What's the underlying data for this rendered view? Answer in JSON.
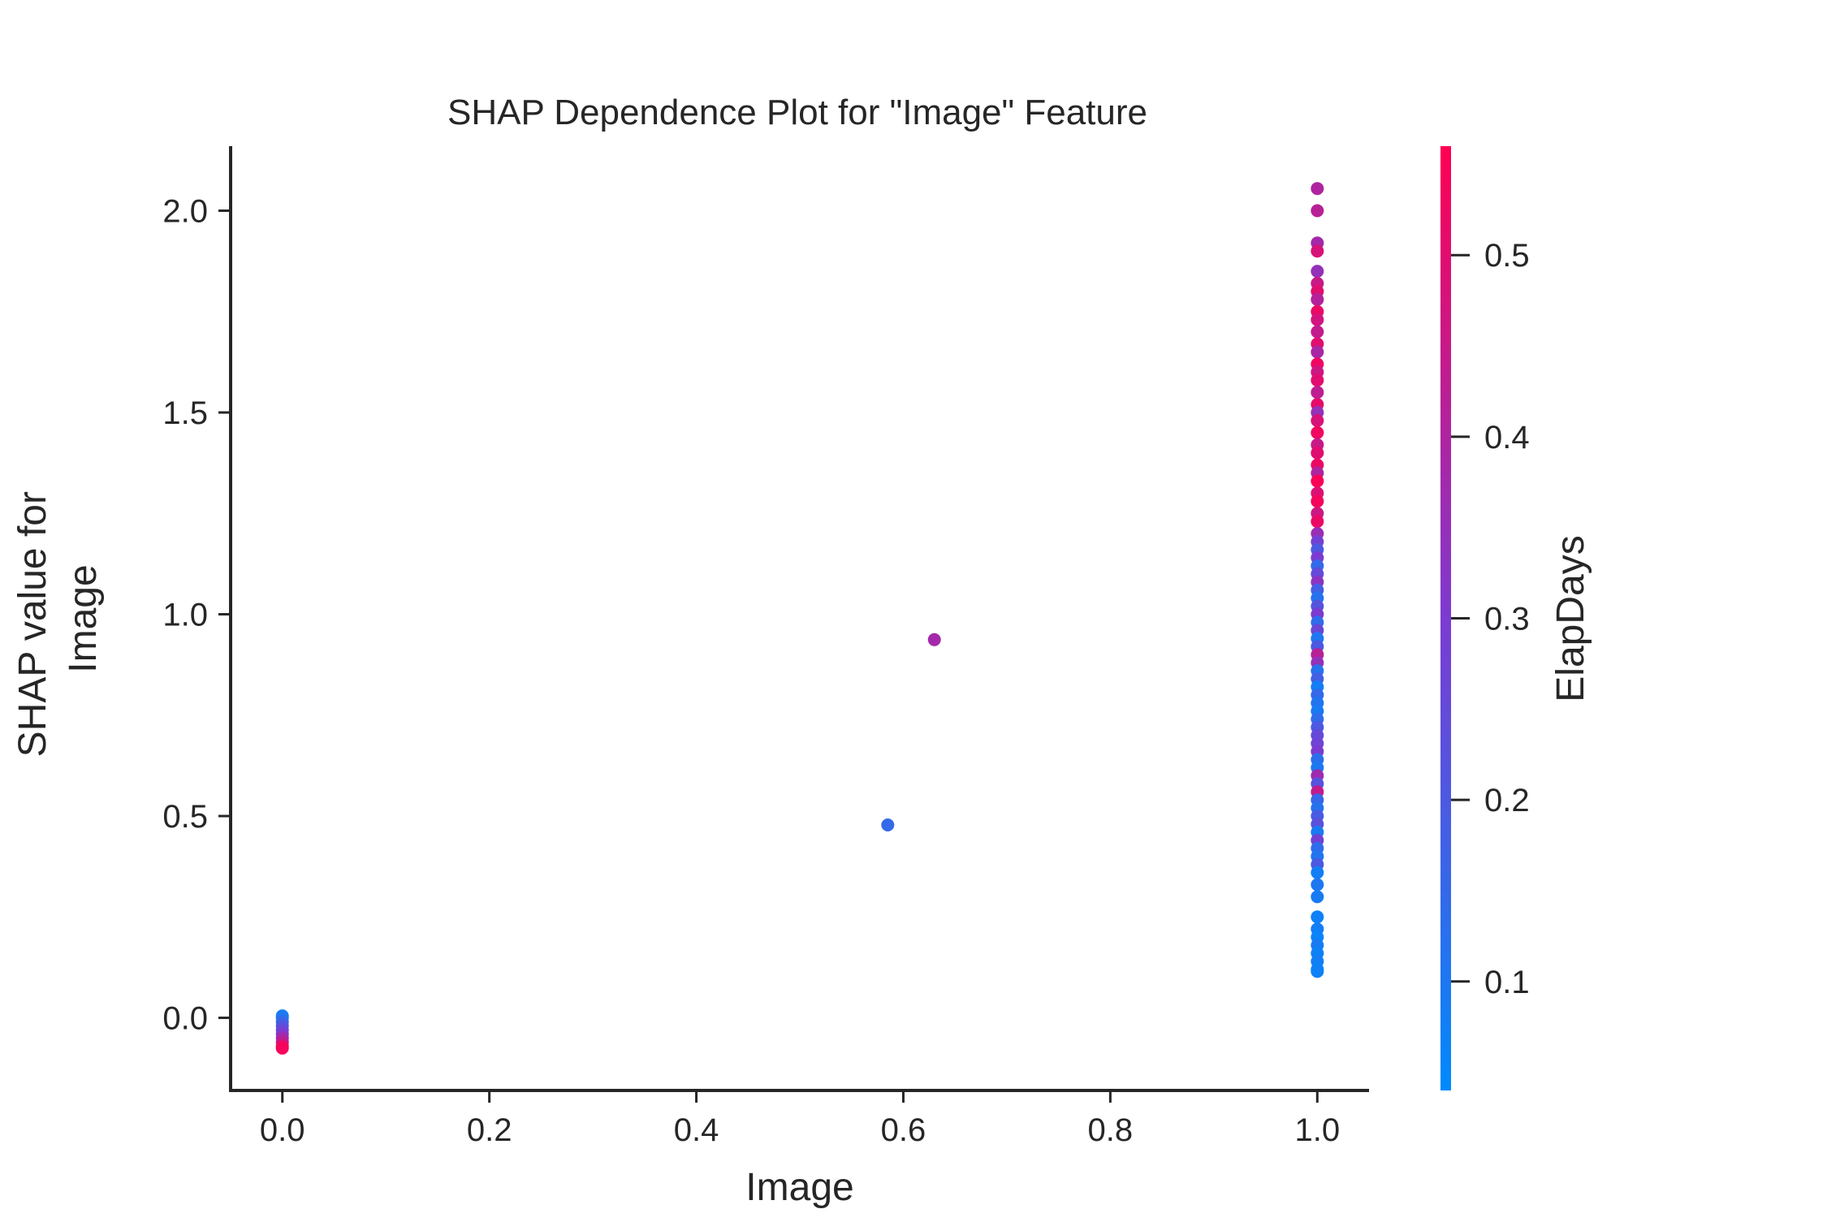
{
  "chart_data": {
    "type": "scatter",
    "title": "SHAP Dependence Plot for \"Image\" Feature",
    "xlabel": "Image",
    "ylabel_lines": [
      "SHAP value for",
      "Image"
    ],
    "xlim": [
      -0.05,
      1.05
    ],
    "ylim": [
      -0.18,
      2.16
    ],
    "x_ticks": [
      0.0,
      0.2,
      0.4,
      0.6,
      0.8,
      1.0
    ],
    "x_tick_labels": [
      "0.0",
      "0.2",
      "0.4",
      "0.6",
      "0.8",
      "1.0"
    ],
    "y_ticks": [
      0.0,
      0.5,
      1.0,
      1.5,
      2.0
    ],
    "y_tick_labels": [
      "0.0",
      "0.5",
      "1.0",
      "1.5",
      "2.0"
    ],
    "colorbar": {
      "label": "ElapDays",
      "range": [
        0.04,
        0.56
      ],
      "ticks": [
        0.1,
        0.2,
        0.3,
        0.4,
        0.5
      ],
      "tick_labels": [
        "0.1",
        "0.2",
        "0.3",
        "0.4",
        "0.5"
      ],
      "color_low": "#008afb",
      "color_mid": "#7c3bd1",
      "color_high": "#ff0052"
    },
    "grid": false,
    "series": [
      {
        "points": [
          [
            0.0,
            0.005,
            0.08
          ],
          [
            0.0,
            0.0,
            0.1
          ],
          [
            0.0,
            -0.01,
            0.15
          ],
          [
            0.0,
            -0.02,
            0.2
          ],
          [
            0.0,
            -0.03,
            0.25
          ],
          [
            0.0,
            -0.04,
            0.3
          ],
          [
            0.0,
            -0.05,
            0.37
          ],
          [
            0.0,
            -0.06,
            0.42
          ],
          [
            0.0,
            -0.07,
            0.5
          ],
          [
            0.0,
            -0.075,
            0.54
          ],
          [
            0.585,
            0.478,
            0.15
          ],
          [
            0.63,
            0.937,
            0.38
          ],
          [
            1.0,
            2.055,
            0.4
          ],
          [
            1.0,
            2.0,
            0.42
          ],
          [
            1.0,
            1.92,
            0.38
          ],
          [
            1.0,
            1.9,
            0.48
          ],
          [
            1.0,
            1.85,
            0.35
          ],
          [
            1.0,
            1.82,
            0.45
          ],
          [
            1.0,
            1.8,
            0.5
          ],
          [
            1.0,
            1.78,
            0.41
          ],
          [
            1.0,
            1.75,
            0.52
          ],
          [
            1.0,
            1.73,
            0.47
          ],
          [
            1.0,
            1.7,
            0.44
          ],
          [
            1.0,
            1.67,
            0.5
          ],
          [
            1.0,
            1.65,
            0.39
          ],
          [
            1.0,
            1.62,
            0.53
          ],
          [
            1.0,
            1.6,
            0.46
          ],
          [
            1.0,
            1.58,
            0.5
          ],
          [
            1.0,
            1.55,
            0.43
          ],
          [
            1.0,
            1.52,
            0.51
          ],
          [
            1.0,
            1.5,
            0.35
          ],
          [
            1.0,
            1.48,
            0.48
          ],
          [
            1.0,
            1.45,
            0.53
          ],
          [
            1.0,
            1.42,
            0.45
          ],
          [
            1.0,
            1.4,
            0.5
          ],
          [
            1.0,
            1.37,
            0.52
          ],
          [
            1.0,
            1.35,
            0.4
          ],
          [
            1.0,
            1.33,
            0.55
          ],
          [
            1.0,
            1.3,
            0.49
          ],
          [
            1.0,
            1.28,
            0.54
          ],
          [
            1.0,
            1.25,
            0.46
          ],
          [
            1.0,
            1.23,
            0.52
          ],
          [
            1.0,
            1.2,
            0.36
          ],
          [
            1.0,
            1.18,
            0.28
          ],
          [
            1.0,
            1.16,
            0.2
          ],
          [
            1.0,
            1.14,
            0.3
          ],
          [
            1.0,
            1.12,
            0.15
          ],
          [
            1.0,
            1.1,
            0.25
          ],
          [
            1.0,
            1.08,
            0.33
          ],
          [
            1.0,
            1.06,
            0.18
          ],
          [
            1.0,
            1.04,
            0.12
          ],
          [
            1.0,
            1.02,
            0.22
          ],
          [
            1.0,
            1.0,
            0.3
          ],
          [
            1.0,
            0.98,
            0.14
          ],
          [
            1.0,
            0.96,
            0.26
          ],
          [
            1.0,
            0.94,
            0.1
          ],
          [
            1.0,
            0.92,
            0.2
          ],
          [
            1.0,
            0.9,
            0.42
          ],
          [
            1.0,
            0.88,
            0.35
          ],
          [
            1.0,
            0.86,
            0.12
          ],
          [
            1.0,
            0.84,
            0.18
          ],
          [
            1.0,
            0.82,
            0.08
          ],
          [
            1.0,
            0.8,
            0.15
          ],
          [
            1.0,
            0.78,
            0.11
          ],
          [
            1.0,
            0.76,
            0.09
          ],
          [
            1.0,
            0.74,
            0.14
          ],
          [
            1.0,
            0.72,
            0.2
          ],
          [
            1.0,
            0.7,
            0.25
          ],
          [
            1.0,
            0.68,
            0.27
          ],
          [
            1.0,
            0.66,
            0.3
          ],
          [
            1.0,
            0.64,
            0.13
          ],
          [
            1.0,
            0.62,
            0.1
          ],
          [
            1.0,
            0.6,
            0.37
          ],
          [
            1.0,
            0.58,
            0.22
          ],
          [
            1.0,
            0.56,
            0.44
          ],
          [
            1.0,
            0.54,
            0.16
          ],
          [
            1.0,
            0.52,
            0.12
          ],
          [
            1.0,
            0.5,
            0.19
          ],
          [
            1.0,
            0.48,
            0.23
          ],
          [
            1.0,
            0.46,
            0.09
          ],
          [
            1.0,
            0.44,
            0.28
          ],
          [
            1.0,
            0.42,
            0.14
          ],
          [
            1.0,
            0.4,
            0.11
          ],
          [
            1.0,
            0.38,
            0.2
          ],
          [
            1.0,
            0.36,
            0.08
          ],
          [
            1.0,
            0.33,
            0.1
          ],
          [
            1.0,
            0.3,
            0.09
          ],
          [
            1.0,
            0.25,
            0.07
          ],
          [
            1.0,
            0.22,
            0.08
          ],
          [
            1.0,
            0.2,
            0.06
          ],
          [
            1.0,
            0.18,
            0.09
          ],
          [
            1.0,
            0.16,
            0.07
          ],
          [
            1.0,
            0.14,
            0.08
          ],
          [
            1.0,
            0.12,
            0.06
          ],
          [
            1.0,
            0.115,
            0.07
          ]
        ]
      }
    ]
  }
}
